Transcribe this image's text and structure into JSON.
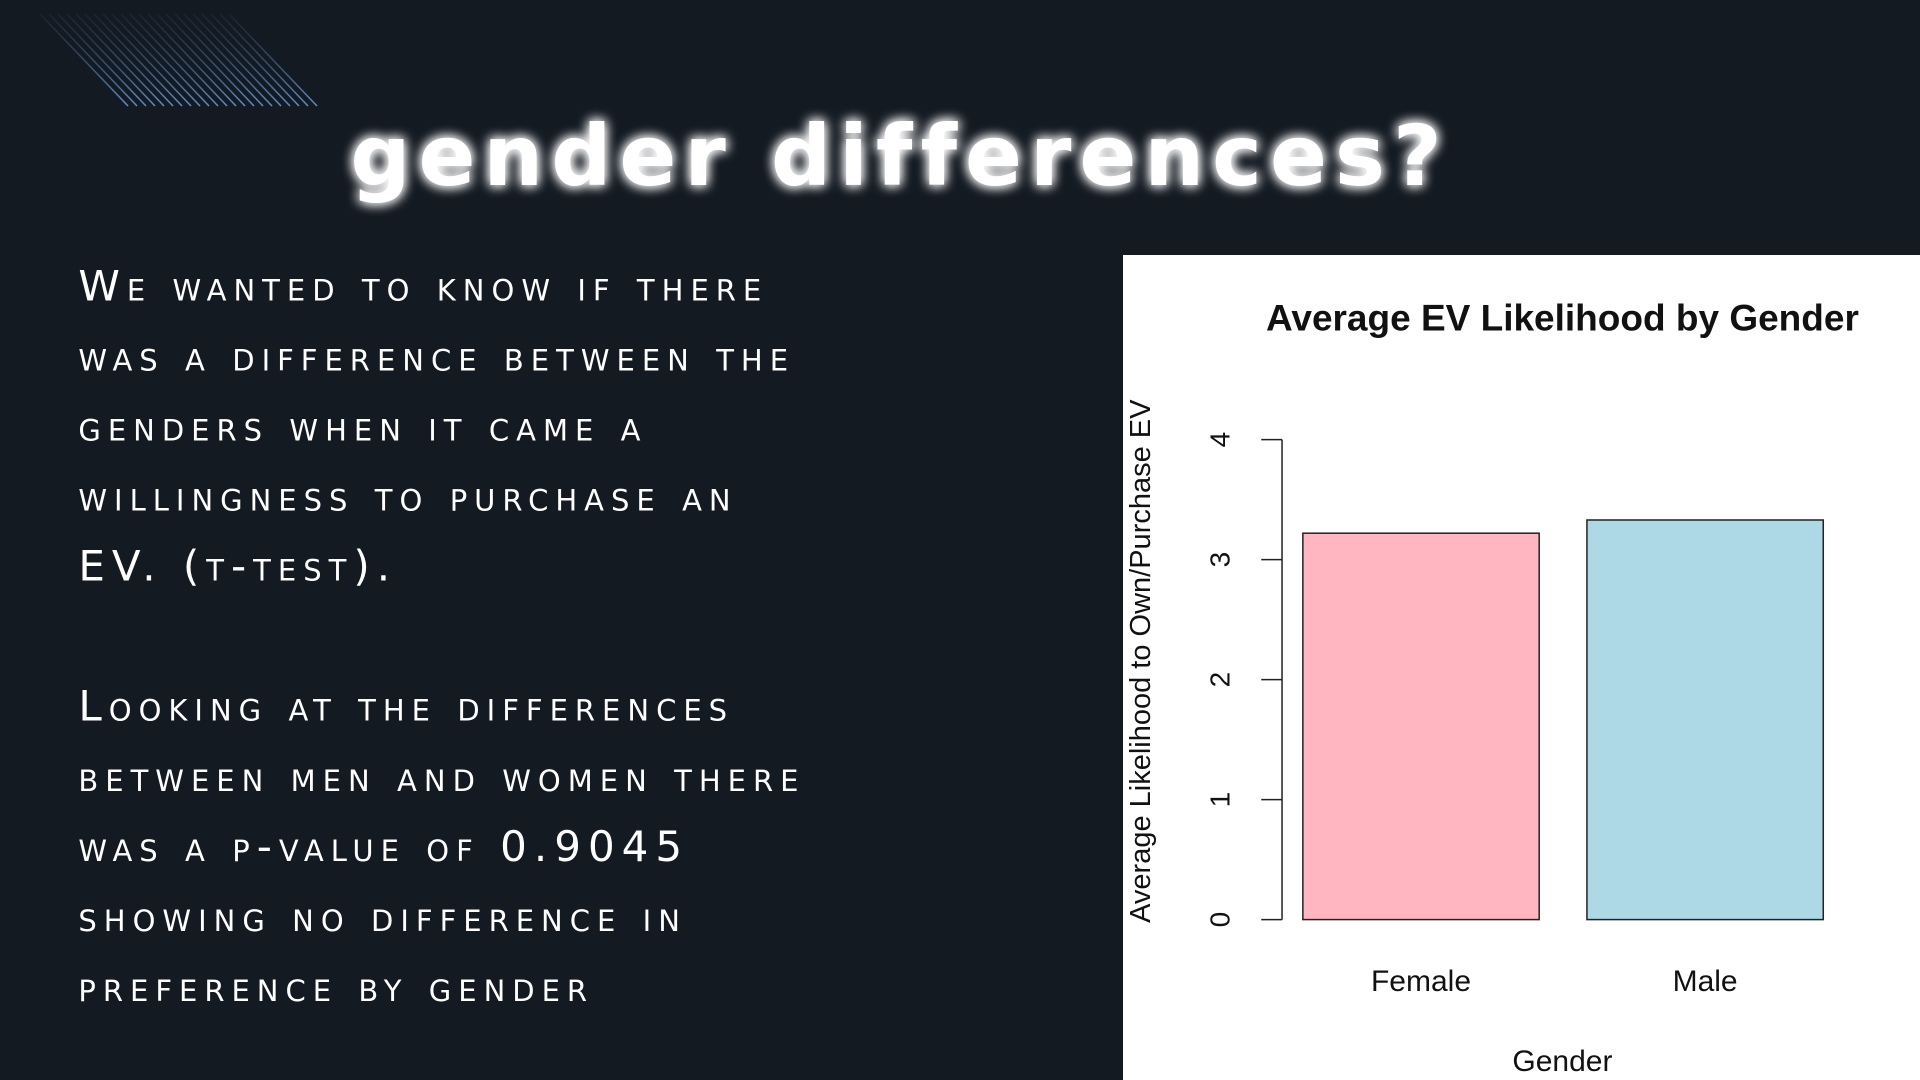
{
  "title": "gender differences?",
  "paragraphs": [
    [
      "We wanted to know if there",
      "was a difference between the",
      "genders when it came a",
      "willingness to purchase an",
      "EV. (t-test)."
    ],
    [
      "Looking at the differences",
      "between men and women there",
      "was a p-value of 0.9045",
      "showing no difference in",
      "preference by gender"
    ]
  ],
  "chart_data": {
    "type": "bar",
    "title": "Average EV Likelihood by Gender",
    "x_label": "Gender",
    "y_label": "Average Likelihood to Own/Purchase EV",
    "categories": [
      "Female",
      "Male"
    ],
    "values": [
      3.22,
      3.33
    ],
    "colors": [
      "#ffb6c1",
      "#add8e6"
    ],
    "ylim": [
      0,
      4
    ],
    "yticks": [
      0,
      1,
      2,
      3,
      4
    ],
    "grid": false
  }
}
